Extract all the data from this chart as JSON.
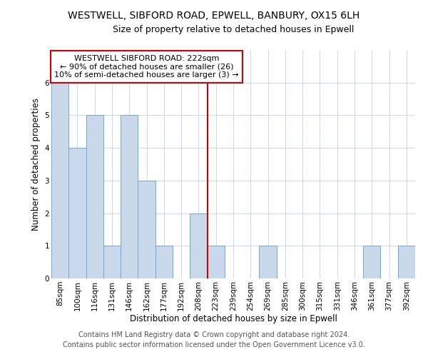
{
  "title": "WESTWELL, SIBFORD ROAD, EPWELL, BANBURY, OX15 6LH",
  "subtitle": "Size of property relative to detached houses in Epwell",
  "xlabel": "Distribution of detached houses by size in Epwell",
  "ylabel": "Number of detached properties",
  "footnote1": "Contains HM Land Registry data © Crown copyright and database right 2024.",
  "footnote2": "Contains public sector information licensed under the Open Government Licence v3.0.",
  "categories": [
    "85sqm",
    "100sqm",
    "116sqm",
    "131sqm",
    "146sqm",
    "162sqm",
    "177sqm",
    "192sqm",
    "208sqm",
    "223sqm",
    "239sqm",
    "254sqm",
    "269sqm",
    "285sqm",
    "300sqm",
    "315sqm",
    "331sqm",
    "346sqm",
    "361sqm",
    "377sqm",
    "392sqm"
  ],
  "values": [
    6,
    4,
    5,
    1,
    5,
    3,
    1,
    0,
    2,
    1,
    0,
    0,
    1,
    0,
    0,
    0,
    0,
    0,
    1,
    0,
    1
  ],
  "bar_color": "#c8d8ea",
  "bar_edge_color": "#6aaad4",
  "vline_x_index": 9,
  "vline_color": "#cc0000",
  "annotation_text": "WESTWELL SIBFORD ROAD: 222sqm\n← 90% of detached houses are smaller (26)\n10% of semi-detached houses are larger (3) →",
  "annotation_box_color": "#ffffff",
  "annotation_box_edge_color": "#cc0000",
  "ylim": [
    0,
    7
  ],
  "yticks": [
    0,
    1,
    2,
    3,
    4,
    5,
    6
  ],
  "grid_color": "#c8d8ea",
  "bg_color": "#ffffff",
  "title_fontsize": 10,
  "subtitle_fontsize": 9,
  "axis_label_fontsize": 8.5,
  "tick_fontsize": 7.5,
  "annotation_fontsize": 8,
  "footnote_fontsize": 7
}
